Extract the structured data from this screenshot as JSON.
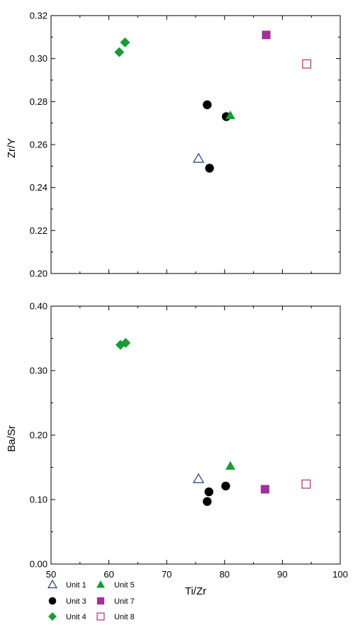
{
  "chart_data": [
    {
      "type": "scatter",
      "title": "",
      "xlabel": "",
      "ylabel": "Zr/Y",
      "xlim": [
        50,
        100
      ],
      "ylim": [
        0.2,
        0.32
      ],
      "xticks": [
        50,
        60,
        70,
        80,
        90,
        100
      ],
      "yticks": [
        "0.20",
        "0.22",
        "0.24",
        "0.26",
        "0.28",
        "0.30",
        "0.32"
      ],
      "show_x_tick_labels": false,
      "grid": false,
      "series": [
        {
          "name": "Unit 1",
          "marker": "triangle-open",
          "color": "#1f3a7a",
          "points": [
            [
              75.5,
              0.2535
            ]
          ]
        },
        {
          "name": "Unit 3",
          "marker": "circle",
          "color": "#000000",
          "points": [
            [
              77.0,
              0.2785
            ],
            [
              77.4,
              0.249
            ],
            [
              80.3,
              0.273
            ]
          ]
        },
        {
          "name": "Unit 4",
          "marker": "diamond",
          "color": "#1a9a3a",
          "points": [
            [
              61.8,
              0.303
            ],
            [
              62.8,
              0.3075
            ]
          ]
        },
        {
          "name": "Unit 5",
          "marker": "triangle",
          "color": "#1a9a3a",
          "points": [
            [
              81.0,
              0.2735
            ]
          ]
        },
        {
          "name": "Unit 7",
          "marker": "square",
          "color": "#a0309a",
          "points": [
            [
              87.2,
              0.311
            ]
          ]
        },
        {
          "name": "Unit 8",
          "marker": "square-open",
          "color": "#b0306a",
          "points": [
            [
              94.2,
              0.2975
            ]
          ]
        }
      ]
    },
    {
      "type": "scatter",
      "title": "",
      "xlabel": "Ti/Zr",
      "ylabel": "Ba/Sr",
      "xlim": [
        50,
        100
      ],
      "ylim": [
        0.0,
        0.4
      ],
      "xticks": [
        "50",
        "60",
        "70",
        "80",
        "90",
        "100"
      ],
      "yticks": [
        "0.00",
        "0.10",
        "0.20",
        "0.30",
        "0.40"
      ],
      "show_x_tick_labels": true,
      "grid": false,
      "series": [
        {
          "name": "Unit 1",
          "marker": "triangle-open",
          "color": "#1f3a7a",
          "points": [
            [
              75.5,
              0.132
            ]
          ]
        },
        {
          "name": "Unit 3",
          "marker": "circle",
          "color": "#000000",
          "points": [
            [
              77.0,
              0.097
            ],
            [
              77.3,
              0.112
            ],
            [
              80.2,
              0.121
            ]
          ]
        },
        {
          "name": "Unit 4",
          "marker": "diamond",
          "color": "#1a9a3a",
          "points": [
            [
              62.0,
              0.34
            ],
            [
              62.9,
              0.343
            ]
          ]
        },
        {
          "name": "Unit 5",
          "marker": "triangle",
          "color": "#1a9a3a",
          "points": [
            [
              81.0,
              0.152
            ]
          ]
        },
        {
          "name": "Unit 7",
          "marker": "square",
          "color": "#a0309a",
          "points": [
            [
              87.0,
              0.116
            ]
          ]
        },
        {
          "name": "Unit 8",
          "marker": "square-open",
          "color": "#b0306a",
          "points": [
            [
              94.1,
              0.124
            ]
          ]
        }
      ]
    }
  ],
  "legend": {
    "placement": "bottom-left",
    "items": [
      {
        "label": "Unit 1",
        "marker": "triangle-open",
        "color": "#1f3a7a"
      },
      {
        "label": "Unit 3",
        "marker": "circle",
        "color": "#000000"
      },
      {
        "label": "Unit 4",
        "marker": "diamond",
        "color": "#1a9a3a"
      },
      {
        "label": "Unit 5",
        "marker": "triangle",
        "color": "#1a9a3a"
      },
      {
        "label": "Unit 7",
        "marker": "square",
        "color": "#a0309a"
      },
      {
        "label": "Unit 8",
        "marker": "square-open",
        "color": "#b0306a"
      }
    ]
  }
}
